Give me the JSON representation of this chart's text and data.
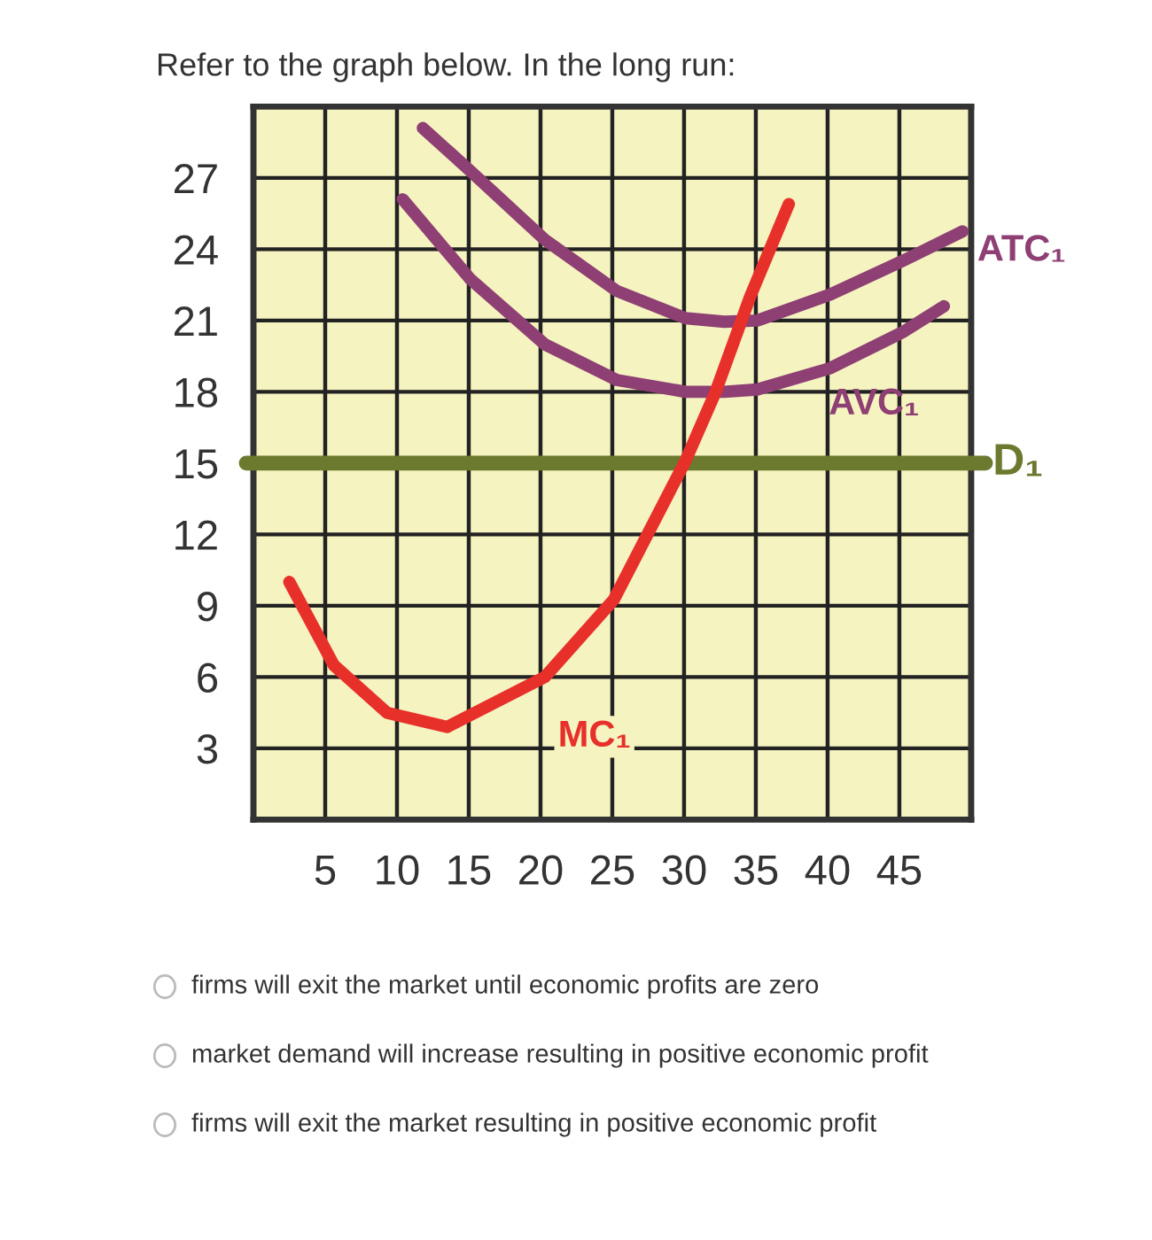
{
  "chart_data": {
    "type": "line",
    "title": "Refer to the graph below. In the long run:",
    "xlim": [
      0,
      50
    ],
    "xticks": [
      5,
      10,
      15,
      20,
      25,
      30,
      35,
      40,
      45
    ],
    "ylim": [
      0,
      30
    ],
    "yticks": [
      3,
      6,
      9,
      12,
      15,
      18,
      21,
      24,
      27
    ],
    "grid": true,
    "legend": false,
    "series": [
      {
        "name": "ATC₁",
        "color": "#8e3f73",
        "x": [
          11.8,
          15.1,
          20.3,
          25.3,
          30.1,
          32.8,
          35.1,
          40.2,
          45.2,
          49.4
        ],
        "values": [
          29.1,
          27.3,
          24.4,
          22.25,
          21.1,
          20.95,
          21.0,
          22.1,
          23.5,
          24.75
        ]
      },
      {
        "name": "AVC₁",
        "color": "#8e3f73",
        "x": [
          10.4,
          15.1,
          20.3,
          25.3,
          30.1,
          32.8,
          35.1,
          40.2,
          45.2,
          48.1
        ],
        "values": [
          26.1,
          22.75,
          20.0,
          18.5,
          18.0,
          18.0,
          18.1,
          19.0,
          20.5,
          21.6
        ]
      },
      {
        "name": "MC₁",
        "color": "#e8302a",
        "x": [
          2.5,
          5.6,
          9.3,
          13.5,
          20.3,
          25.1,
          30.1,
          32.2,
          34.6,
          37.3
        ],
        "values": [
          10.0,
          6.5,
          4.5,
          3.9,
          6.0,
          9.25,
          15.1,
          18.0,
          22.0,
          25.9
        ]
      }
    ],
    "ref_lines": [
      {
        "axis": "y",
        "value": 15,
        "label": "D₁",
        "color": "#6b7a2e"
      }
    ],
    "annotations": [
      "firms will exit the market until economic profits are zero",
      "market demand will increase resulting in positive economic profit",
      "firms will exit the market resulting in positive economic profit"
    ]
  }
}
